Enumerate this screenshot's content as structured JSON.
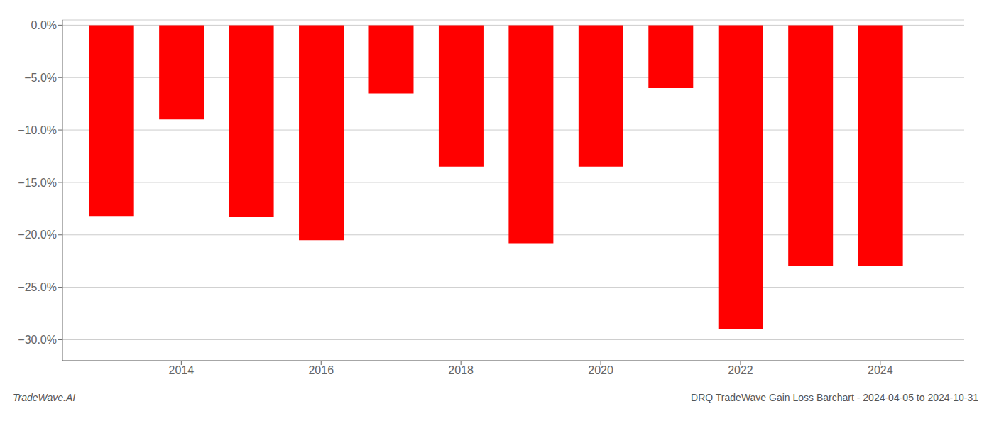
{
  "chart_data": {
    "type": "bar",
    "title": "DRQ TradeWave Gain Loss Barchart - 2024-04-05 to 2024-10-31",
    "annotations": [
      "TradeWave.AI"
    ],
    "x": [
      2013,
      2014,
      2015,
      2016,
      2017,
      2018,
      2019,
      2020,
      2021,
      2022,
      2023,
      2024
    ],
    "values": [
      -0.182,
      -0.09,
      -0.183,
      -0.205,
      -0.065,
      -0.135,
      -0.208,
      -0.135,
      -0.06,
      -0.29,
      -0.23,
      -0.23
    ],
    "color": "#ff0000",
    "xlim": [
      2012.3,
      2025.2
    ],
    "xticks": [
      2014,
      2016,
      2018,
      2020,
      2022,
      2024
    ],
    "ylim": [
      -0.32,
      0.005
    ],
    "yticks": [
      {
        "value": 0.0,
        "label": "0.0%"
      },
      {
        "value": -0.05,
        "label": "−5.0%"
      },
      {
        "value": -0.1,
        "label": "−10.0%"
      },
      {
        "value": -0.15,
        "label": "−15.0%"
      },
      {
        "value": -0.2,
        "label": "−20.0%"
      },
      {
        "value": -0.25,
        "label": "−25.0%"
      },
      {
        "value": -0.3,
        "label": "−30.0%"
      }
    ],
    "grid": true
  }
}
